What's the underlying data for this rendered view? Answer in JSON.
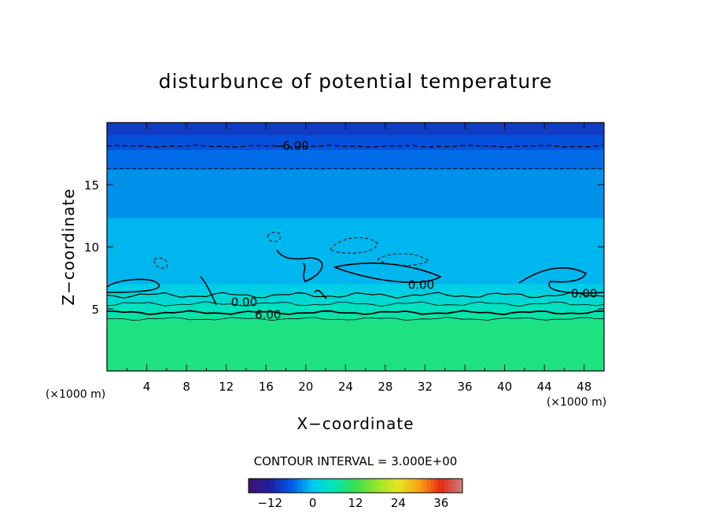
{
  "chart_data": {
    "type": "heatmap",
    "title": "disturbunce of potential temperature",
    "xlabel": "X−coordinate",
    "ylabel": "Z−coordinate",
    "x_unit_left": "(×1000 m)",
    "x_unit_right": "(×1000 m)",
    "xlim": [
      0,
      50
    ],
    "ylim": [
      0,
      20
    ],
    "x_ticks": [
      "4",
      "8",
      "12",
      "16",
      "20",
      "24",
      "28",
      "32",
      "36",
      "40",
      "44",
      "48"
    ],
    "y_ticks": [
      "5",
      "10",
      "15"
    ],
    "contour_interval_text": "CONTOUR INTERVAL = 3.000E+00",
    "contour_labels": [
      {
        "text": "−6.00",
        "x": 18.5,
        "z": 18.2
      },
      {
        "text": "0.00",
        "x": 13.8,
        "z": 5.6
      },
      {
        "text": "6.00",
        "x": 16.2,
        "z": 4.6
      },
      {
        "text": "0.00",
        "x": 31.6,
        "z": 7.0
      },
      {
        "text": "0.00",
        "x": 48.0,
        "z": 6.3
      }
    ],
    "layers": [
      {
        "z0": 19.0,
        "z1": 20.0,
        "value": -9
      },
      {
        "z0": 17.8,
        "z1": 19.0,
        "value": -7
      },
      {
        "z0": 16.2,
        "z1": 17.8,
        "value": -5
      },
      {
        "z0": 12.3,
        "z1": 16.2,
        "value": -3
      },
      {
        "z0": 7.0,
        "z1": 12.3,
        "value": -1
      },
      {
        "z0": 6.2,
        "z1": 7.0,
        "value": 1
      },
      {
        "z0": 5.4,
        "z1": 6.2,
        "value": 3
      },
      {
        "z0": 4.6,
        "z1": 5.4,
        "value": 5
      },
      {
        "z0": 4.1,
        "z1": 4.6,
        "value": 7
      },
      {
        "z0": 0.0,
        "z1": 4.1,
        "value": 9
      }
    ],
    "colorbar": {
      "min": -18,
      "max": 42,
      "ticks": [
        "−12",
        "0",
        "12",
        "24",
        "36"
      ]
    }
  }
}
